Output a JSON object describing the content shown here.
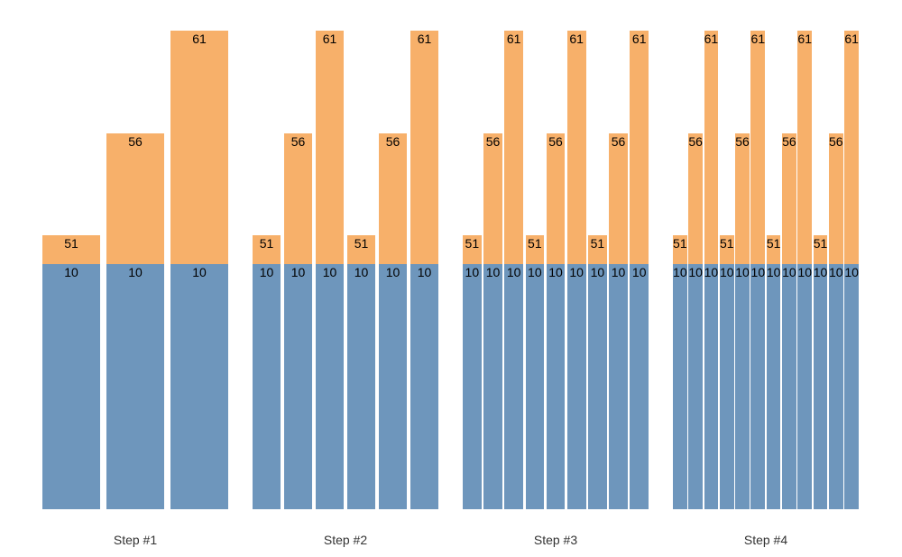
{
  "chart_data": {
    "type": "bar",
    "subtype": "stacked-bars-splitting-per-step",
    "title": "",
    "xlabel": "",
    "ylabel": "",
    "grid": false,
    "legend": false,
    "value_axis_visible": false,
    "categories": [
      "Step #1",
      "Step #2",
      "Step #3",
      "Step #4"
    ],
    "segment_colors": {
      "base_color": "#6E96BC",
      "top_color": "#F7B06A"
    },
    "base_value": 10,
    "totals_pattern": [
      51,
      56,
      61
    ],
    "steps": [
      {
        "label": "Step #1",
        "bar_count": 3,
        "totals": [
          51,
          56,
          61
        ],
        "base_values": [
          10,
          10,
          10
        ]
      },
      {
        "label": "Step #2",
        "bar_count": 6,
        "totals": [
          51,
          56,
          61,
          51,
          56,
          61
        ],
        "base_values": [
          10,
          10,
          10,
          10,
          10,
          10
        ]
      },
      {
        "label": "Step #3",
        "bar_count": 9,
        "totals": [
          51,
          56,
          61,
          51,
          56,
          61,
          51,
          56,
          61
        ],
        "base_values": [
          10,
          10,
          10,
          10,
          10,
          10,
          10,
          10,
          10
        ]
      },
      {
        "label": "Step #4",
        "bar_count": 12,
        "totals": [
          51,
          56,
          61,
          51,
          56,
          61,
          51,
          56,
          61,
          51,
          56,
          61
        ],
        "base_values": [
          10,
          10,
          10,
          10,
          10,
          10,
          10,
          10,
          10,
          10,
          10,
          10
        ]
      }
    ]
  },
  "colors": {
    "background": "#ffffff",
    "bar_label_text": "#000000",
    "axis_label_text": "#333333"
  }
}
